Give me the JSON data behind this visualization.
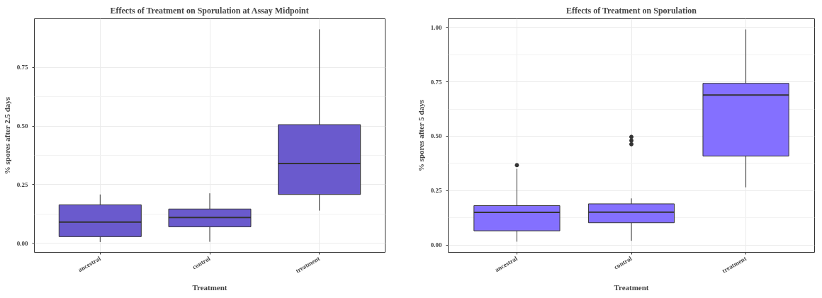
{
  "chart_data": [
    {
      "type": "box",
      "title": "Effects of Treatment on Sporulation at Assay Midpoint",
      "xlabel": "Treatment",
      "ylabel": "% spores after 2.5 days",
      "categories": [
        "ancestral",
        "control",
        "treatment"
      ],
      "color": "#6a5acd",
      "boxes": [
        {
          "low": 0.005,
          "q1": 0.028,
          "median": 0.09,
          "q3": 0.164,
          "high": 0.208
        },
        {
          "low": 0.006,
          "q1": 0.07,
          "median": 0.11,
          "q3": 0.146,
          "high": 0.213
        },
        {
          "low": 0.139,
          "q1": 0.208,
          "median": 0.34,
          "q3": 0.506,
          "high": 0.913
        }
      ],
      "ylim": [
        -0.039,
        0.958
      ],
      "yticks": [
        {
          "value": 0,
          "label": "0.00"
        },
        {
          "value": 0.25,
          "label": "0.25"
        },
        {
          "value": 0.5,
          "label": "0.50"
        },
        {
          "value": 0.75,
          "label": "0.75"
        }
      ],
      "grid": true
    },
    {
      "type": "box",
      "title": "Effects of Treatment on Sporulation",
      "xlabel": "Treatment",
      "ylabel": "% spores after 5 days",
      "categories": [
        "ancestral",
        "control",
        "treatment"
      ],
      "color": "#8470ff",
      "boxes": [
        {
          "low": 0.015,
          "q1": 0.065,
          "median": 0.15,
          "q3": 0.181,
          "high": 0.35,
          "outliers": [
            0.367
          ]
        },
        {
          "low": 0.019,
          "q1": 0.102,
          "median": 0.151,
          "q3": 0.189,
          "high": 0.214,
          "outliers": [
            0.463,
            0.48,
            0.497
          ]
        },
        {
          "low": 0.265,
          "q1": 0.409,
          "median": 0.689,
          "q3": 0.743,
          "high": 0.991
        }
      ],
      "ylim": [
        -0.034,
        1.04
      ],
      "yticks": [
        {
          "value": 0,
          "label": "0.00"
        },
        {
          "value": 0.25,
          "label": "0.25"
        },
        {
          "value": 0.5,
          "label": "0.50"
        },
        {
          "value": 0.75,
          "label": "0.75"
        },
        {
          "value": 1,
          "label": "1.00"
        }
      ],
      "grid": true
    }
  ]
}
